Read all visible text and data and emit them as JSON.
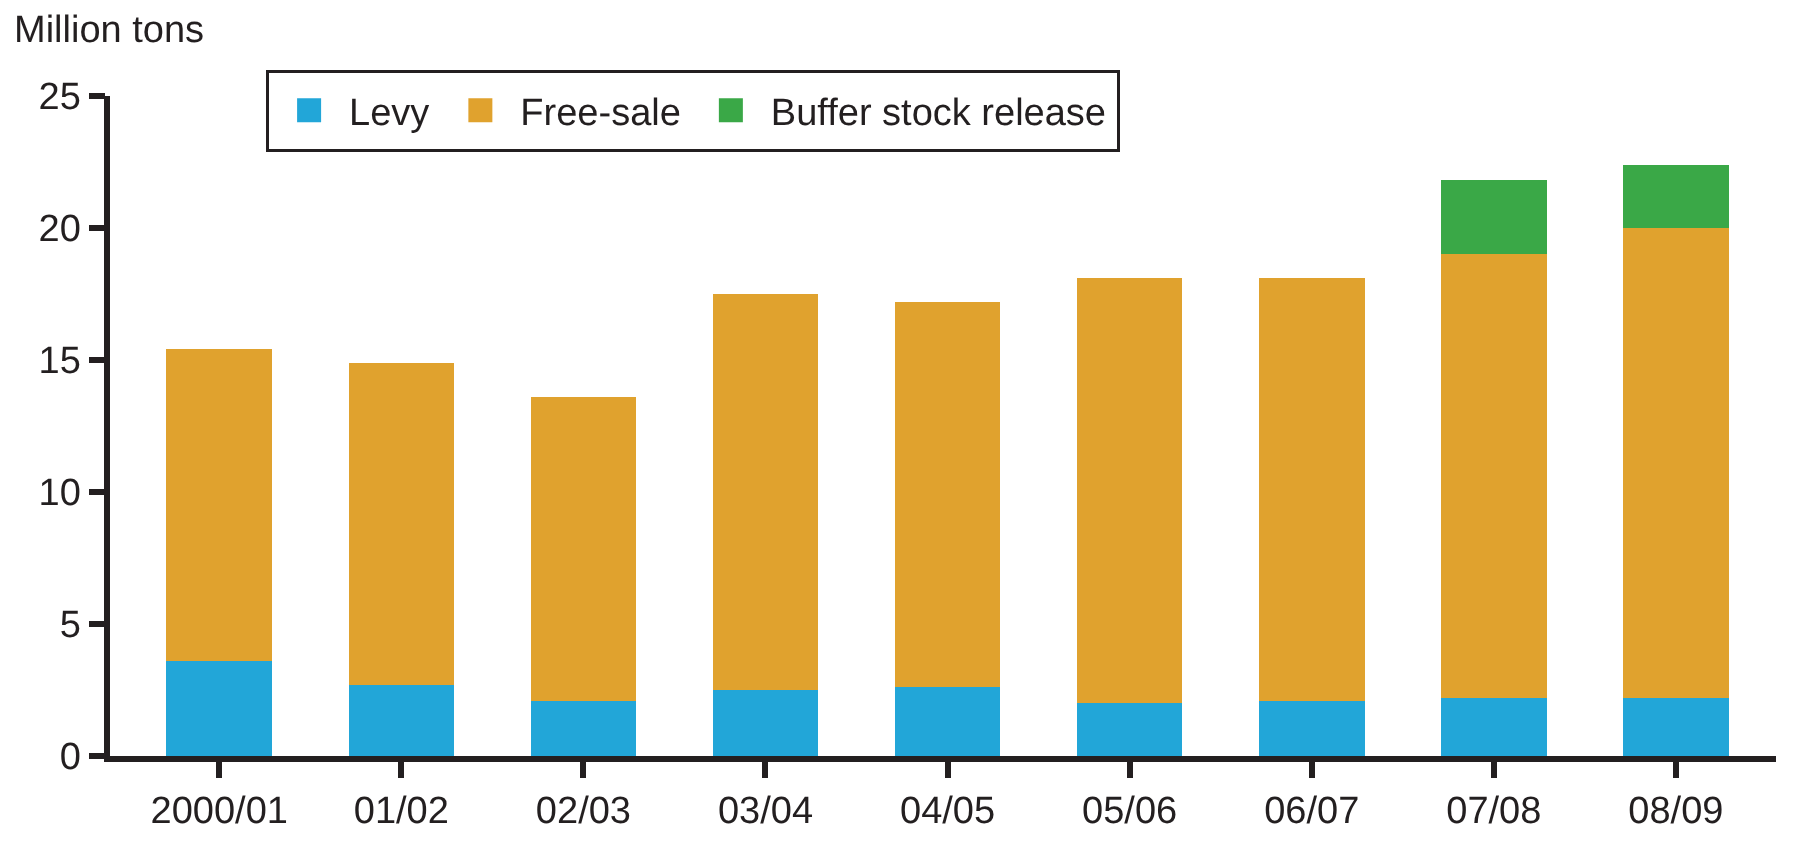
{
  "chart_data": {
    "type": "bar",
    "stacked": true,
    "ylabel": "Million tons",
    "categories": [
      "2000/01",
      "01/02",
      "02/03",
      "03/04",
      "04/05",
      "05/06",
      "06/07",
      "07/08",
      "08/09"
    ],
    "series": [
      {
        "name": "Levy",
        "color": "#22a6d8",
        "values": [
          3.6,
          2.7,
          2.1,
          2.5,
          2.6,
          2.0,
          2.1,
          2.2,
          2.2
        ]
      },
      {
        "name": "Free-sale",
        "color": "#e0a22e",
        "values": [
          11.8,
          12.2,
          11.5,
          15.0,
          14.6,
          16.1,
          16.0,
          16.8,
          17.8
        ]
      },
      {
        "name": "Buffer stock release",
        "color": "#3aa847",
        "values": [
          null,
          null,
          null,
          null,
          null,
          null,
          null,
          2.8,
          2.4
        ]
      }
    ],
    "ylim": [
      0,
      25
    ],
    "yticks": [
      0,
      5,
      10,
      15,
      20,
      25
    ],
    "legend": "top"
  }
}
